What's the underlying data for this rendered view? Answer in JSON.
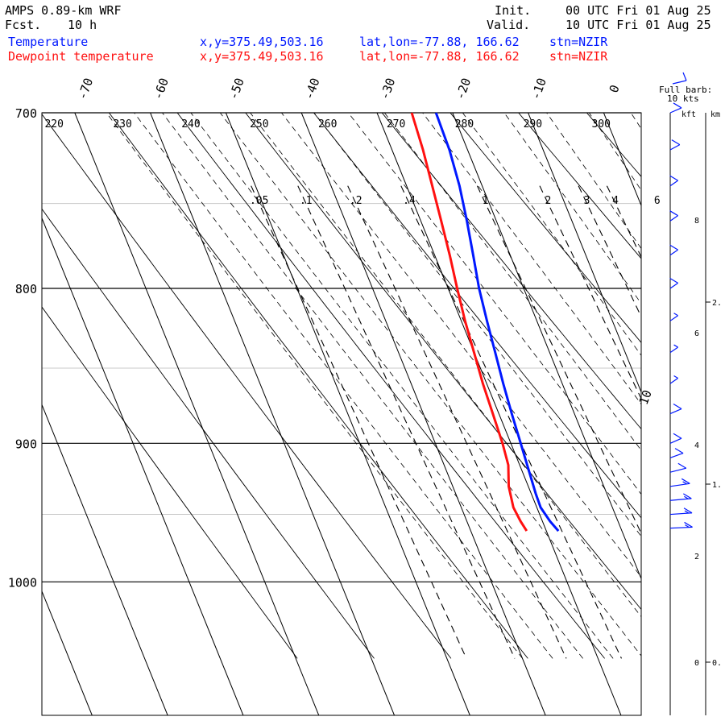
{
  "header": {
    "model": "AMPS 0.89-km WRF",
    "fcst_label": "Fcst.",
    "fcst_value": "10 h",
    "init_label": "Init.",
    "init_value": "00 UTC Fri 01 Aug 25",
    "valid_label": "Valid.",
    "valid_value": "10 UTC Fri 01 Aug 25"
  },
  "legend": [
    {
      "name": "Temperature",
      "xy": "x,y=375.49,503.16",
      "latlon": "lat,lon=-77.88, 166.62",
      "stn": "stn=NZIR",
      "color": "#0018ff"
    },
    {
      "name": "Dewpoint temperature",
      "xy": "x,y=375.49,503.16",
      "latlon": "lat,lon=-77.88, 166.62",
      "stn": "stn=NZIR",
      "color": "#ff1010"
    }
  ],
  "barb_legend": {
    "line1": "Full barb:",
    "line2": "10 kts"
  },
  "height_axis": {
    "left_label": "kft",
    "right_label": "km",
    "kft_ticks": [
      "8",
      "6",
      "4",
      "2",
      "0"
    ],
    "km_ticks": [
      "2.",
      "1.",
      "0."
    ]
  },
  "chart_data": {
    "type": "line",
    "diagram": "skew-T log-P",
    "pressure_ticks": [
      700,
      800,
      900,
      1000
    ],
    "pressure_range": [
      700,
      1045
    ],
    "isotherm_labels": [
      "-70",
      "-60",
      "-50",
      "-40",
      "-30",
      "-20",
      "-10",
      "0",
      "10"
    ],
    "potential_temperature_labels": [
      "220",
      "230",
      "240",
      "250",
      "260",
      "270",
      "280",
      "290",
      "300"
    ],
    "mixing_ratio_labels": [
      ".05",
      ".1",
      ".2",
      ".4",
      "1",
      "2",
      "3",
      "4",
      "6"
    ],
    "series": [
      {
        "name": "Temperature",
        "color": "#0018ff",
        "points": [
          [
            700,
            -22.2
          ],
          [
            720,
            -22.4
          ],
          [
            740,
            -23.0
          ],
          [
            760,
            -23.9
          ],
          [
            780,
            -24.9
          ],
          [
            800,
            -25.9
          ],
          [
            820,
            -26.6
          ],
          [
            840,
            -27.2
          ],
          [
            860,
            -27.8
          ],
          [
            880,
            -28.3
          ],
          [
            900,
            -28.7
          ],
          [
            920,
            -29.1
          ],
          [
            935,
            -29.4
          ],
          [
            945,
            -29.5
          ],
          [
            955,
            -29.0
          ],
          [
            962,
            -28.4
          ]
        ]
      },
      {
        "name": "Dewpoint temperature",
        "color": "#ff1010",
        "points": [
          [
            700,
            -25.4
          ],
          [
            720,
            -25.9
          ],
          [
            740,
            -26.6
          ],
          [
            760,
            -27.3
          ],
          [
            780,
            -28.0
          ],
          [
            800,
            -28.8
          ],
          [
            820,
            -29.5
          ],
          [
            840,
            -30.0
          ],
          [
            860,
            -30.5
          ],
          [
            880,
            -30.8
          ],
          [
            900,
            -31.1
          ],
          [
            915,
            -31.5
          ],
          [
            930,
            -32.6
          ],
          [
            945,
            -33.1
          ],
          [
            955,
            -32.9
          ],
          [
            962,
            -32.6
          ]
        ]
      }
    ],
    "wind_barbs": [
      {
        "p": 700,
        "spd": 10,
        "dir": 210
      },
      {
        "p": 720,
        "spd": 10,
        "dir": 205
      },
      {
        "p": 740,
        "spd": 10,
        "dir": 200
      },
      {
        "p": 760,
        "spd": 10,
        "dir": 200
      },
      {
        "p": 780,
        "spd": 10,
        "dir": 200
      },
      {
        "p": 800,
        "spd": 10,
        "dir": 200
      },
      {
        "p": 820,
        "spd": 5,
        "dir": 200
      },
      {
        "p": 840,
        "spd": 5,
        "dir": 200
      },
      {
        "p": 860,
        "spd": 5,
        "dir": 200
      },
      {
        "p": 880,
        "spd": 10,
        "dir": 210
      },
      {
        "p": 900,
        "spd": 10,
        "dir": 210
      },
      {
        "p": 910,
        "spd": 10,
        "dir": 215
      },
      {
        "p": 920,
        "spd": 10,
        "dir": 225
      },
      {
        "p": 930,
        "spd": 15,
        "dir": 240
      },
      {
        "p": 940,
        "spd": 15,
        "dir": 250
      },
      {
        "p": 950,
        "spd": 15,
        "dir": 255
      },
      {
        "p": 960,
        "spd": 15,
        "dir": 260
      }
    ]
  }
}
